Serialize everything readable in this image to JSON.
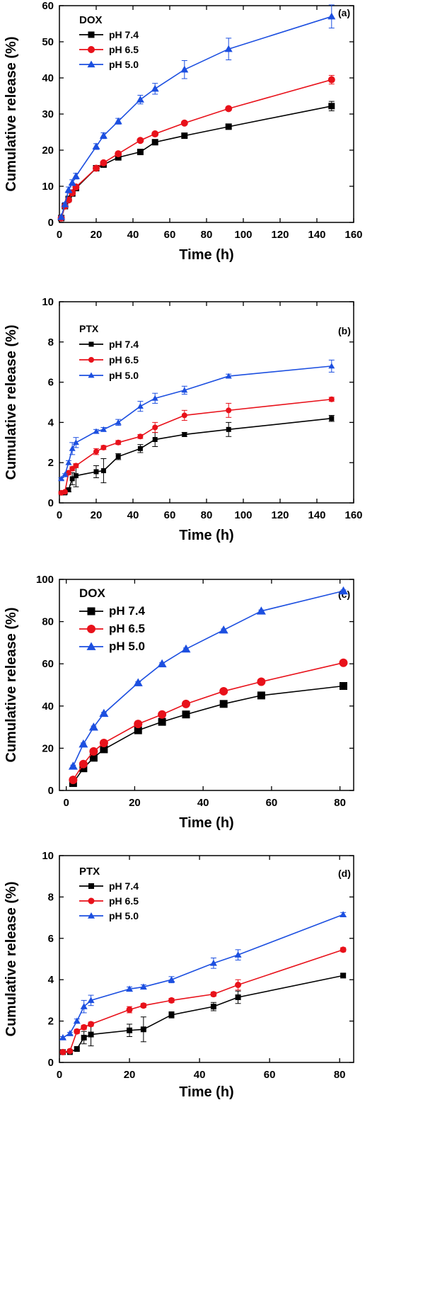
{
  "chart_data": [
    {
      "type": "line",
      "panel_tag": "(a)",
      "drug": "DOX",
      "xlabel": "Time (h)",
      "ylabel": "Cumulative release (%)",
      "xlim": [
        0,
        160
      ],
      "ylim": [
        0,
        60
      ],
      "xticks": [
        0,
        20,
        40,
        60,
        80,
        100,
        120,
        140,
        160
      ],
      "yticks": [
        0,
        10,
        20,
        30,
        40,
        50,
        60
      ],
      "legend_position": "top-left",
      "grid": false,
      "series": [
        {
          "name": "pH 7.4",
          "color": "#000000",
          "marker": "square",
          "x": [
            1,
            3,
            5,
            7,
            9,
            20,
            24,
            32,
            44,
            52,
            68,
            92,
            148
          ],
          "y": [
            1.2,
            4.5,
            6.5,
            8.0,
            9.5,
            15.0,
            16.0,
            18.0,
            19.5,
            22.2,
            24.0,
            26.5,
            32.2
          ],
          "err": [
            0.3,
            0.4,
            0.5,
            0.5,
            0.5,
            0.5,
            0.5,
            0.5,
            0.5,
            0.5,
            0.5,
            0.5,
            1.3
          ]
        },
        {
          "name": "pH 6.5",
          "color": "#e8111a",
          "marker": "circle",
          "x": [
            1,
            3,
            5,
            7,
            9,
            20,
            24,
            32,
            44,
            52,
            68,
            92,
            148
          ],
          "y": [
            1.2,
            4.5,
            6.2,
            8.2,
            9.8,
            15.0,
            16.5,
            19.0,
            22.7,
            24.5,
            27.5,
            31.5,
            39.5
          ],
          "err": [
            0.3,
            0.4,
            0.5,
            0.5,
            0.5,
            0.5,
            0.5,
            0.5,
            0.5,
            0.5,
            0.5,
            0.5,
            1.2
          ]
        },
        {
          "name": "pH 5.0",
          "color": "#1c4fe0",
          "marker": "triangle",
          "x": [
            1,
            3,
            5,
            7,
            9,
            20,
            24,
            32,
            44,
            52,
            68,
            92,
            148
          ],
          "y": [
            1.5,
            5.0,
            9.0,
            11.0,
            12.8,
            21.0,
            24.0,
            28.0,
            34.0,
            37.0,
            42.3,
            48.0,
            57.0
          ],
          "err": [
            0.3,
            0.5,
            0.8,
            0.8,
            0.8,
            0.8,
            0.8,
            0.8,
            1.2,
            1.5,
            2.5,
            3.0,
            3.2
          ]
        }
      ]
    },
    {
      "type": "line",
      "panel_tag": "(b)",
      "drug": "PTX",
      "xlabel": "Time (h)",
      "ylabel": "Cumulative release (%)",
      "xlim": [
        0,
        160
      ],
      "ylim": [
        0,
        10
      ],
      "xticks": [
        0,
        20,
        40,
        60,
        80,
        100,
        120,
        140,
        160
      ],
      "yticks": [
        0,
        2,
        4,
        6,
        8,
        10
      ],
      "legend_position": "top-left",
      "grid": false,
      "series": [
        {
          "name": "pH 7.4",
          "color": "#000000",
          "marker": "square",
          "x": [
            1,
            3,
            5,
            7,
            9,
            20,
            24,
            32,
            44,
            52,
            68,
            92,
            148
          ],
          "y": [
            0.5,
            0.5,
            0.65,
            1.2,
            1.35,
            1.55,
            1.6,
            2.3,
            2.7,
            3.15,
            3.4,
            3.65,
            4.2
          ],
          "err": [
            0.05,
            0.05,
            0.1,
            0.3,
            0.55,
            0.3,
            0.6,
            0.15,
            0.2,
            0.35,
            0.1,
            0.35,
            0.15
          ]
        },
        {
          "name": "pH 6.5",
          "color": "#e8111a",
          "marker": "circle",
          "x": [
            1,
            3,
            5,
            7,
            9,
            20,
            24,
            32,
            44,
            52,
            68,
            92,
            148
          ],
          "y": [
            0.5,
            0.55,
            1.5,
            1.7,
            1.85,
            2.55,
            2.75,
            3.0,
            3.3,
            3.75,
            4.35,
            4.6,
            5.15
          ],
          "err": [
            0.05,
            0.05,
            0.1,
            0.1,
            0.1,
            0.15,
            0.1,
            0.1,
            0.1,
            0.25,
            0.25,
            0.35,
            0.1
          ]
        },
        {
          "name": "pH 5.0",
          "color": "#1c4fe0",
          "marker": "triangle",
          "x": [
            1,
            3,
            5,
            7,
            9,
            20,
            24,
            32,
            44,
            52,
            68,
            92,
            148
          ],
          "y": [
            1.2,
            1.4,
            2.0,
            2.7,
            3.0,
            3.55,
            3.65,
            4.0,
            4.8,
            5.2,
            5.6,
            6.3,
            6.8
          ],
          "err": [
            0.05,
            0.05,
            0.1,
            0.3,
            0.25,
            0.1,
            0.1,
            0.15,
            0.25,
            0.25,
            0.2,
            0.1,
            0.3
          ]
        }
      ]
    },
    {
      "type": "line",
      "panel_tag": "(c)",
      "drug": "DOX",
      "xlabel": "Time (h)",
      "ylabel": "Cumulative release (%)",
      "xlim": [
        -2,
        84
      ],
      "ylim": [
        0,
        100
      ],
      "xticks": [
        0,
        20,
        40,
        60,
        80
      ],
      "yticks": [
        0,
        20,
        40,
        60,
        80,
        100
      ],
      "legend_position": "top-left",
      "grid": false,
      "series": [
        {
          "name": "pH 7.4",
          "color": "#000000",
          "marker": "square",
          "x": [
            2,
            5,
            8,
            11,
            21,
            28,
            35,
            46,
            57,
            81
          ],
          "y": [
            3.5,
            10.5,
            15.5,
            19.5,
            28.5,
            32.5,
            36.0,
            41.0,
            45.0,
            49.5
          ],
          "err": [
            0.5,
            0.5,
            0.5,
            0.5,
            0.5,
            0.5,
            0.5,
            0.5,
            0.5,
            0.5
          ]
        },
        {
          "name": "pH 6.5",
          "color": "#e8111a",
          "marker": "circle",
          "x": [
            2,
            5,
            8,
            11,
            21,
            28,
            35,
            46,
            57,
            81
          ],
          "y": [
            5.0,
            12.5,
            18.5,
            22.5,
            31.5,
            36.0,
            41.0,
            47.0,
            51.5,
            60.5
          ],
          "err": [
            0.5,
            0.5,
            0.5,
            0.5,
            0.5,
            0.5,
            0.5,
            0.5,
            0.5,
            0.5
          ]
        },
        {
          "name": "pH 5.0",
          "color": "#1c4fe0",
          "marker": "triangle",
          "x": [
            2,
            5,
            8,
            11,
            21,
            28,
            35,
            46,
            57,
            81
          ],
          "y": [
            11.5,
            22.0,
            30.0,
            36.5,
            51.0,
            60.0,
            67.0,
            76.0,
            85.0,
            94.5
          ],
          "err": [
            0.5,
            0.5,
            0.5,
            0.5,
            0.5,
            0.5,
            0.5,
            0.5,
            0.5,
            0.5
          ]
        }
      ]
    },
    {
      "type": "line",
      "panel_tag": "(d)",
      "drug": "PTX",
      "xlabel": "Time (h)",
      "ylabel": "Cumulative release (%)",
      "xlim": [
        0,
        84
      ],
      "ylim": [
        0,
        10
      ],
      "xticks": [
        0,
        20,
        40,
        60,
        80
      ],
      "yticks": [
        0,
        2,
        4,
        6,
        8,
        10
      ],
      "legend_position": "top-left",
      "grid": false,
      "series": [
        {
          "name": "pH 7.4",
          "color": "#000000",
          "marker": "square",
          "x": [
            1,
            3,
            5,
            7,
            9,
            20,
            24,
            32,
            44,
            51,
            81
          ],
          "y": [
            0.5,
            0.5,
            0.65,
            1.2,
            1.35,
            1.55,
            1.6,
            2.3,
            2.7,
            3.15,
            4.2
          ],
          "err": [
            0.05,
            0.05,
            0.1,
            0.3,
            0.55,
            0.3,
            0.6,
            0.15,
            0.2,
            0.3,
            0.1
          ]
        },
        {
          "name": "pH 6.5",
          "color": "#e8111a",
          "marker": "circle",
          "x": [
            1,
            3,
            5,
            7,
            9,
            20,
            24,
            32,
            44,
            51,
            81
          ],
          "y": [
            0.5,
            0.55,
            1.5,
            1.7,
            1.85,
            2.55,
            2.75,
            3.0,
            3.3,
            3.75,
            5.45
          ],
          "err": [
            0.05,
            0.05,
            0.1,
            0.1,
            0.1,
            0.15,
            0.1,
            0.1,
            0.1,
            0.25,
            0.1
          ]
        },
        {
          "name": "pH 5.0",
          "color": "#1c4fe0",
          "marker": "triangle",
          "x": [
            1,
            3,
            5,
            7,
            9,
            20,
            24,
            32,
            44,
            51,
            81
          ],
          "y": [
            1.2,
            1.4,
            2.0,
            2.7,
            3.0,
            3.55,
            3.65,
            4.0,
            4.8,
            5.2,
            7.15
          ],
          "err": [
            0.05,
            0.05,
            0.1,
            0.3,
            0.25,
            0.1,
            0.1,
            0.15,
            0.25,
            0.25,
            0.1
          ]
        }
      ]
    }
  ]
}
